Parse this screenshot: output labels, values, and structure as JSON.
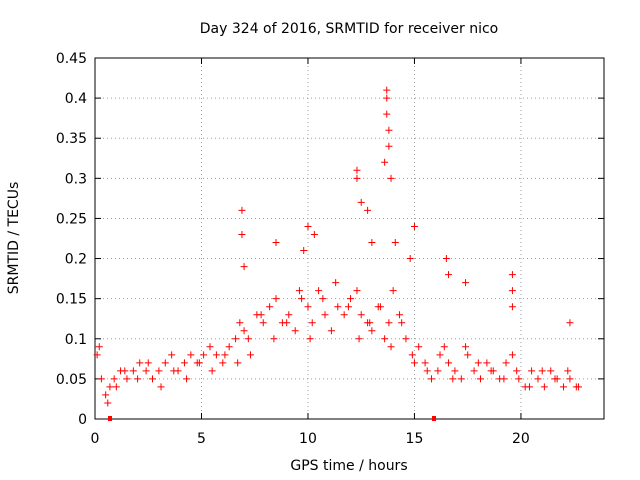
{
  "chart_data": {
    "type": "scatter",
    "title": "Day 324 of 2016, SRMTID for receiver nico",
    "xlabel": "GPS time / hours",
    "ylabel": "SRMTID / TECUs",
    "xlim": [
      0,
      23.9
    ],
    "ylim": [
      0,
      0.45
    ],
    "xticks": [
      0,
      5,
      10,
      15,
      20
    ],
    "xtick_labels": [
      "0",
      "5",
      "10",
      "15",
      "20"
    ],
    "yticks": [
      0,
      0.05,
      0.1,
      0.15,
      0.2,
      0.25,
      0.3,
      0.35,
      0.4,
      0.45
    ],
    "ytick_labels": [
      "0",
      "0.05",
      "0.1",
      "0.15",
      "0.2",
      "0.25",
      "0.3",
      "0.35",
      "0.4",
      "0.45"
    ],
    "grid": true,
    "marker": "plus",
    "series": [
      {
        "color": "#ff0000",
        "x": [
          0.1,
          0.3,
          0.5,
          0.7,
          0.9,
          1.2,
          1.5,
          1.8,
          2.1,
          2.4,
          2.7,
          3.0,
          3.3,
          3.6,
          3.9,
          4.2,
          4.5,
          4.8,
          5.1,
          5.4,
          5.7,
          6.0,
          6.3,
          6.6,
          6.8,
          7.0,
          7.3,
          7.6,
          7.9,
          8.2,
          8.5,
          8.8,
          9.1,
          9.4,
          9.7,
          10.0,
          10.2,
          10.5,
          10.8,
          11.1,
          11.4,
          11.7,
          12.0,
          12.3,
          12.5,
          12.8,
          13.0,
          13.3,
          13.6,
          13.8,
          14.0,
          14.3,
          14.6,
          14.9,
          15.2,
          15.5,
          15.8,
          16.1,
          16.4,
          16.6,
          16.9,
          17.2,
          17.5,
          17.8,
          18.1,
          18.4,
          18.7,
          19.0,
          19.3,
          19.6,
          19.9,
          20.2,
          20.5,
          20.8,
          21.1,
          21.4,
          21.7,
          22.0,
          22.3,
          22.6,
          0.2,
          0.6,
          1.0,
          1.4,
          2.0,
          2.5,
          3.1,
          3.7,
          4.3,
          4.9,
          5.5,
          6.1,
          6.7,
          7.2,
          7.8,
          8.4,
          9.0,
          9.6,
          10.1,
          10.7,
          11.3,
          11.9,
          12.4,
          12.9,
          13.4,
          13.9,
          14.4,
          15.0,
          15.6,
          16.2,
          16.8,
          17.4,
          18.0,
          18.6,
          19.2,
          19.8,
          20.4,
          21.0,
          21.6,
          22.2,
          22.7,
          6.9,
          6.9,
          8.5,
          10.3,
          12.3,
          12.3,
          12.5,
          13.0,
          13.7,
          13.7,
          13.7,
          13.8,
          13.8,
          13.6,
          13.9,
          14.1,
          14.8,
          15.0,
          16.5,
          16.6,
          17.4,
          19.6,
          19.6,
          19.6,
          22.3,
          7.0,
          9.8,
          10.0,
          12.8
        ],
        "y": [
          0.08,
          0.05,
          0.03,
          0.04,
          0.05,
          0.06,
          0.05,
          0.06,
          0.07,
          0.06,
          0.05,
          0.06,
          0.07,
          0.08,
          0.06,
          0.07,
          0.08,
          0.07,
          0.08,
          0.09,
          0.08,
          0.07,
          0.09,
          0.1,
          0.12,
          0.11,
          0.08,
          0.13,
          0.12,
          0.14,
          0.15,
          0.12,
          0.13,
          0.11,
          0.15,
          0.14,
          0.12,
          0.16,
          0.13,
          0.11,
          0.14,
          0.13,
          0.15,
          0.16,
          0.13,
          0.12,
          0.11,
          0.14,
          0.1,
          0.12,
          0.16,
          0.13,
          0.1,
          0.08,
          0.09,
          0.07,
          0.05,
          0.06,
          0.09,
          0.07,
          0.06,
          0.05,
          0.08,
          0.06,
          0.05,
          0.07,
          0.06,
          0.05,
          0.07,
          0.08,
          0.05,
          0.04,
          0.06,
          0.05,
          0.04,
          0.06,
          0.05,
          0.04,
          0.05,
          0.04,
          0.09,
          0.02,
          0.04,
          0.06,
          0.05,
          0.07,
          0.04,
          0.06,
          0.05,
          0.07,
          0.06,
          0.08,
          0.07,
          0.1,
          0.13,
          0.1,
          0.12,
          0.16,
          0.1,
          0.15,
          0.17,
          0.14,
          0.1,
          0.12,
          0.14,
          0.09,
          0.12,
          0.07,
          0.06,
          0.08,
          0.05,
          0.09,
          0.07,
          0.06,
          0.05,
          0.06,
          0.04,
          0.06,
          0.05,
          0.06,
          0.04,
          0.26,
          0.23,
          0.22,
          0.23,
          0.31,
          0.3,
          0.27,
          0.22,
          0.41,
          0.4,
          0.38,
          0.34,
          0.36,
          0.32,
          0.3,
          0.22,
          0.2,
          0.24,
          0.2,
          0.18,
          0.17,
          0.18,
          0.16,
          0.14,
          0.12,
          0.19,
          0.21,
          0.24,
          0.26
        ]
      }
    ]
  }
}
